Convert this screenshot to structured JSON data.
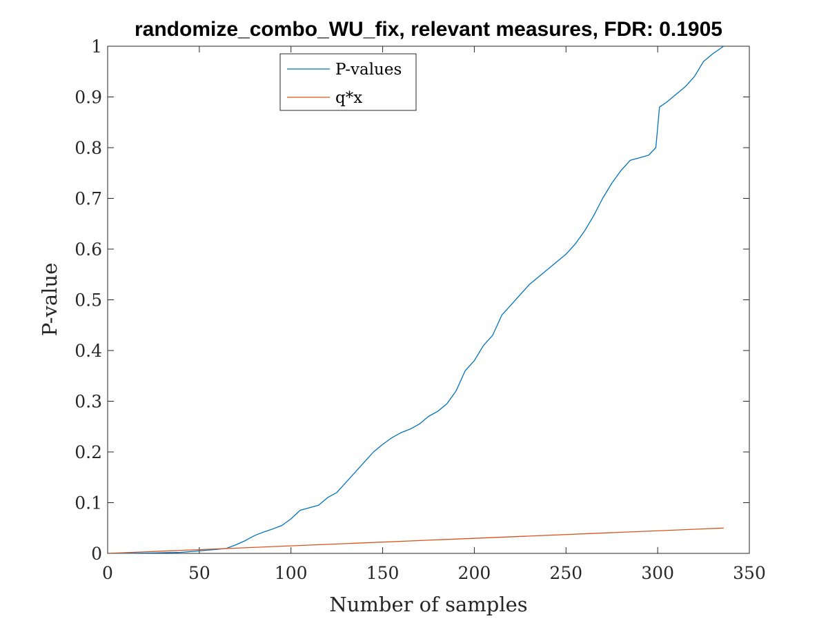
{
  "chart_data": {
    "type": "line",
    "title": "randomize_combo_WU_fix, relevant measures, FDR: 0.1905",
    "xlabel": "Number of samples",
    "ylabel": "P-value",
    "xlim": [
      0,
      350
    ],
    "ylim": [
      0,
      1
    ],
    "xticks": [
      0,
      50,
      100,
      150,
      200,
      250,
      300,
      350
    ],
    "yticks": [
      0,
      0.1,
      0.2,
      0.3,
      0.4,
      0.5,
      0.6,
      0.7,
      0.8,
      0.9,
      1
    ],
    "ytick_labels": [
      "0",
      "0.1",
      "0.2",
      "0.3",
      "0.4",
      "0.5",
      "0.6",
      "0.7",
      "0.8",
      "0.9",
      "1"
    ],
    "grid": false,
    "legend_position": "top-left",
    "series": [
      {
        "name": "P-values",
        "color": "#0072BD",
        "x": [
          1,
          20,
          40,
          50,
          60,
          65,
          70,
          75,
          80,
          85,
          90,
          95,
          100,
          105,
          110,
          115,
          120,
          125,
          130,
          135,
          140,
          145,
          150,
          155,
          160,
          165,
          170,
          175,
          180,
          185,
          190,
          195,
          200,
          205,
          210,
          215,
          220,
          225,
          230,
          235,
          240,
          245,
          250,
          255,
          260,
          265,
          270,
          275,
          280,
          285,
          290,
          295,
          299,
          301,
          305,
          310,
          315,
          320,
          325,
          330,
          336
        ],
        "y": [
          0,
          0.0005,
          0.002,
          0.005,
          0.008,
          0.01,
          0.017,
          0.025,
          0.035,
          0.042,
          0.048,
          0.055,
          0.068,
          0.085,
          0.09,
          0.095,
          0.11,
          0.12,
          0.14,
          0.16,
          0.18,
          0.2,
          0.215,
          0.228,
          0.238,
          0.245,
          0.255,
          0.27,
          0.28,
          0.295,
          0.32,
          0.36,
          0.38,
          0.41,
          0.43,
          0.47,
          0.49,
          0.51,
          0.53,
          0.545,
          0.56,
          0.575,
          0.59,
          0.61,
          0.635,
          0.665,
          0.7,
          0.73,
          0.755,
          0.775,
          0.78,
          0.785,
          0.8,
          0.88,
          0.89,
          0.905,
          0.92,
          0.94,
          0.97,
          0.985,
          1.0
        ]
      },
      {
        "name": "q*x",
        "color": "#D95319",
        "x": [
          1,
          336
        ],
        "y": [
          0.000149,
          0.05
        ]
      }
    ]
  }
}
